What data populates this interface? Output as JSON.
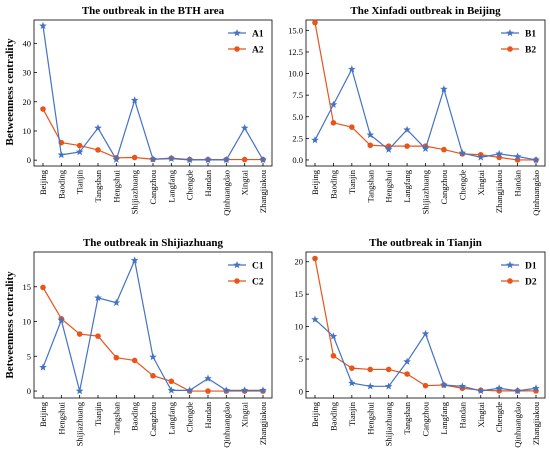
{
  "colors": {
    "series1": "#4472C4",
    "series2": "#E8541A"
  },
  "ylabel": "Betweenness centrality",
  "chart_data": [
    {
      "type": "line",
      "title": "The outbreak in the BTH area",
      "ylabel": "Betweenness centrality",
      "categories": [
        "Beijing",
        "Baoding",
        "Tianjin",
        "Tangshan",
        "Hengshui",
        "Shijiazhuang",
        "Cangzhou",
        "Langfang",
        "Chengde",
        "Handan",
        "Qinhuangdao",
        "Xingtai",
        "Zhangjiakou"
      ],
      "ylim": [
        -2,
        48
      ],
      "yticks": [
        0,
        10,
        20,
        30,
        40
      ],
      "legend": "top-right",
      "series": [
        {
          "name": "A1",
          "marker": "star",
          "values": [
            46,
            1.8,
            2.8,
            11,
            0.2,
            20.5,
            0.3,
            0.5,
            0.1,
            0.1,
            0.1,
            11,
            0.1
          ]
        },
        {
          "name": "A2",
          "marker": "circle",
          "values": [
            17.5,
            6,
            5,
            3.5,
            0.8,
            0.9,
            0.3,
            0.7,
            0.2,
            0.2,
            0.2,
            0.2,
            0.2
          ]
        }
      ]
    },
    {
      "type": "line",
      "title": "The Xinfadi outbreak in Beijing",
      "ylabel": "",
      "categories": [
        "Beijing",
        "Baoding",
        "Tianjin",
        "Tangshan",
        "Hengshui",
        "Langfang",
        "Shijiazhuang",
        "Cangzhou",
        "Chengde",
        "Xingtai",
        "Zhangjiakou",
        "Handan",
        "Qinhuangdao"
      ],
      "ylim": [
        -0.7,
        16.2
      ],
      "yticks": [
        0.0,
        2.5,
        5.0,
        7.5,
        10.0,
        12.5,
        15.0
      ],
      "legend": "top-right",
      "series": [
        {
          "name": "B1",
          "marker": "star",
          "values": [
            2.3,
            6.4,
            10.5,
            2.9,
            1.2,
            3.5,
            1.3,
            8.2,
            0.8,
            0.3,
            0.7,
            0.4,
            0.0
          ]
        },
        {
          "name": "B2",
          "marker": "circle",
          "values": [
            15.9,
            4.3,
            3.8,
            1.7,
            1.6,
            1.6,
            1.6,
            1.2,
            0.7,
            0.6,
            0.3,
            0.0,
            0.0
          ]
        }
      ]
    },
    {
      "type": "line",
      "title": "The outbreak in Shijiazhuang",
      "ylabel": "Betweenness centrality",
      "categories": [
        "Beijing",
        "Hengshui",
        "Shijiazhuang",
        "Tianjin",
        "Tangshan",
        "Baoding",
        "Cangzhou",
        "Langfang",
        "Chengde",
        "Handan",
        "Qinhuangdao",
        "Xingtai",
        "Zhangjiakou"
      ],
      "ylim": [
        -1,
        20
      ],
      "yticks": [
        0,
        5,
        10,
        15
      ],
      "legend": "top-right",
      "series": [
        {
          "name": "C1",
          "marker": "star",
          "values": [
            3.4,
            10.2,
            0.0,
            13.4,
            12.7,
            18.8,
            4.9,
            0.1,
            0.1,
            1.8,
            0.1,
            0.1,
            0.1
          ]
        },
        {
          "name": "C2",
          "marker": "circle",
          "values": [
            14.9,
            10.4,
            8.2,
            7.9,
            4.8,
            4.4,
            2.2,
            1.4,
            0.0,
            0.0,
            0.0,
            0.0,
            0.0
          ]
        }
      ]
    },
    {
      "type": "line",
      "title": "The outbreak in Tianjin",
      "ylabel": "",
      "categories": [
        "Beijing",
        "Baoding",
        "Tianjin",
        "Hengshui",
        "Shijiazhuang",
        "Tangshan",
        "Cangzhou",
        "Langfang",
        "Handan",
        "Xingtai",
        "Chengde",
        "Qinhuangdao",
        "Zhangjiakou"
      ],
      "ylim": [
        -1,
        21.5
      ],
      "yticks": [
        0,
        5,
        10,
        15,
        20
      ],
      "legend": "top-right",
      "series": [
        {
          "name": "D1",
          "marker": "star",
          "values": [
            11.1,
            8.5,
            1.3,
            0.8,
            0.8,
            4.6,
            8.9,
            1.0,
            0.8,
            0.1,
            0.5,
            0.1,
            0.5
          ]
        },
        {
          "name": "D2",
          "marker": "circle",
          "values": [
            20.5,
            5.5,
            3.6,
            3.4,
            3.4,
            2.7,
            0.9,
            1.0,
            0.5,
            0.2,
            0.1,
            0.1,
            0.1
          ]
        }
      ]
    }
  ]
}
